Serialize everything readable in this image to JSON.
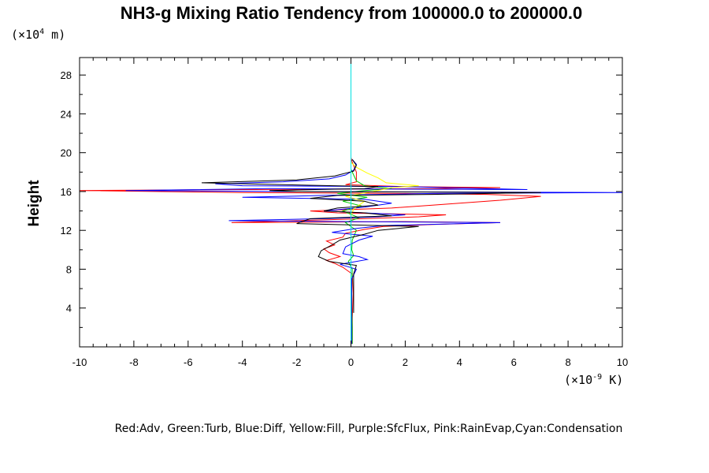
{
  "chart_data": {
    "type": "line",
    "title": "NH3-g Mixing Ratio Tendency from 100000.0 to 200000.0",
    "ylabel": "Height",
    "y_unit_prefix": "(×10",
    "y_unit_exp": "4",
    "y_unit_suffix": " m)",
    "x_unit_prefix": "(×10",
    "x_unit_exp": "-9",
    "x_unit_suffix": " K)",
    "xlim": [
      -10,
      10
    ],
    "ylim": [
      0,
      29.8
    ],
    "x_ticks": [
      -10,
      -8,
      -6,
      -4,
      -2,
      0,
      2,
      4,
      6,
      8,
      10
    ],
    "x_tick_labels": [
      "-10",
      "-8",
      "-6",
      "-4",
      "-2",
      "0",
      "2",
      "4",
      "6",
      "8",
      "10"
    ],
    "y_ticks": [
      4,
      8,
      12,
      16,
      20,
      24,
      28
    ],
    "y_tick_labels": [
      "4",
      "8",
      "12",
      "16",
      "20",
      "24",
      "28"
    ],
    "legend_text": "Red:Adv, Green:Turb, Blue:Diff, Yellow:Fill, Purple:SfcFlux, Pink:RainEvap,Cyan:Condensation",
    "grid": false,
    "series": [
      {
        "color": "#ff0000",
        "points": [
          [
            0.05,
            0.3
          ],
          [
            0.05,
            3
          ],
          [
            0.08,
            5.5
          ],
          [
            0.05,
            7.5
          ],
          [
            -0.3,
            8.2
          ],
          [
            -0.6,
            8.6
          ],
          [
            -0.9,
            8.9
          ],
          [
            -0.4,
            9.3
          ],
          [
            -0.8,
            9.7
          ],
          [
            -1.0,
            10.1
          ],
          [
            -0.6,
            10.5
          ],
          [
            -0.9,
            10.9
          ],
          [
            -0.3,
            11.3
          ],
          [
            -0.2,
            11.7
          ],
          [
            0.5,
            12.1
          ],
          [
            1.2,
            12.4
          ],
          [
            3.0,
            12.6
          ],
          [
            5.5,
            12.8
          ],
          [
            2.0,
            12.9
          ],
          [
            -4.4,
            12.8
          ],
          [
            -2.0,
            13.0
          ],
          [
            0.5,
            13.2
          ],
          [
            2.5,
            13.4
          ],
          [
            3.5,
            13.6
          ],
          [
            -0.5,
            13.8
          ],
          [
            -1.5,
            14.0
          ],
          [
            0.5,
            14.2
          ],
          [
            1.5,
            14.3
          ],
          [
            3.0,
            14.6
          ],
          [
            5.5,
            15.1
          ],
          [
            7.0,
            15.5
          ],
          [
            5.0,
            15.7
          ],
          [
            2.0,
            15.8
          ],
          [
            -4.0,
            15.9
          ],
          [
            -10.0,
            16.1
          ],
          [
            -4.0,
            16.2
          ],
          [
            3.0,
            16.3
          ],
          [
            5.5,
            16.4
          ],
          [
            2.0,
            16.5
          ],
          [
            -0.2,
            16.7
          ],
          [
            0.2,
            17.0
          ],
          [
            0.2,
            18.0
          ],
          [
            0.05,
            19.0
          ],
          [
            0,
            19.5
          ]
        ]
      },
      {
        "color": "#00cc00",
        "points": [
          [
            0.05,
            0.3
          ],
          [
            0.05,
            2
          ],
          [
            0.03,
            4
          ],
          [
            0.03,
            6
          ],
          [
            0.05,
            8
          ],
          [
            -0.1,
            8.8
          ],
          [
            0.1,
            9.4
          ],
          [
            0.03,
            10
          ],
          [
            0.05,
            11
          ],
          [
            0.2,
            12
          ],
          [
            -0.2,
            12.8
          ],
          [
            0.3,
            13.3
          ],
          [
            -0.3,
            14.0
          ],
          [
            0.4,
            14.5
          ],
          [
            -0.3,
            15.0
          ],
          [
            0.6,
            15.4
          ],
          [
            -0.5,
            15.8
          ],
          [
            0.5,
            16.1
          ],
          [
            1.5,
            16.3
          ],
          [
            0.5,
            16.6
          ],
          [
            0.2,
            17.1
          ],
          [
            0.1,
            17.7
          ],
          [
            0,
            18.3
          ],
          [
            0,
            19
          ]
        ]
      },
      {
        "color": "#0000ff",
        "points": [
          [
            0.02,
            0.3
          ],
          [
            0.02,
            4
          ],
          [
            0.03,
            7
          ],
          [
            0.2,
            8
          ],
          [
            -0.4,
            8.5
          ],
          [
            0.6,
            9.0
          ],
          [
            0.3,
            9.3
          ],
          [
            -0.3,
            9.6
          ],
          [
            -0.2,
            10.3
          ],
          [
            0.3,
            11
          ],
          [
            0.8,
            11.4
          ],
          [
            -0.7,
            11.8
          ],
          [
            0.2,
            12.2
          ],
          [
            1.2,
            12.5
          ],
          [
            5.5,
            12.8
          ],
          [
            0,
            12.9
          ],
          [
            -4.5,
            13.0
          ],
          [
            -1.0,
            13.2
          ],
          [
            1.0,
            13.4
          ],
          [
            2.0,
            13.6
          ],
          [
            -1.0,
            14.0
          ],
          [
            0.5,
            14.4
          ],
          [
            1.5,
            14.8
          ],
          [
            0.5,
            15.2
          ],
          [
            -4.0,
            15.4
          ],
          [
            -1.0,
            15.6
          ],
          [
            3.0,
            15.8
          ],
          [
            10.0,
            15.9
          ],
          [
            -2.0,
            16.0
          ],
          [
            -8.3,
            16.1
          ],
          [
            -3.0,
            16.3
          ],
          [
            6.5,
            16.2
          ],
          [
            2.0,
            16.5
          ],
          [
            -4.0,
            16.6
          ],
          [
            -5.0,
            16.8
          ],
          [
            -2.5,
            17.0
          ],
          [
            -0.8,
            17.3
          ],
          [
            -0.2,
            17.7
          ],
          [
            0.1,
            18.2
          ],
          [
            0.2,
            18.8
          ],
          [
            0.05,
            19.3
          ]
        ]
      },
      {
        "color": "#ffff00",
        "points": [
          [
            0,
            13.5
          ],
          [
            0.1,
            14.2
          ],
          [
            0.5,
            15.0
          ],
          [
            -0.2,
            15.5
          ],
          [
            0.8,
            16.0
          ],
          [
            1.5,
            16.4
          ],
          [
            2.5,
            16.6
          ],
          [
            1.3,
            16.9
          ],
          [
            1.0,
            17.4
          ],
          [
            0.6,
            17.9
          ],
          [
            0.2,
            18.5
          ],
          [
            0,
            19
          ]
        ]
      },
      {
        "color": "#000000",
        "points": [
          [
            0.1,
            3.5
          ],
          [
            0.1,
            7.5
          ],
          [
            0.2,
            8.4
          ],
          [
            -0.8,
            8.8
          ],
          [
            -1.2,
            9.3
          ],
          [
            -1.1,
            9.9
          ],
          [
            -0.7,
            10.5
          ],
          [
            -0.4,
            11.0
          ],
          [
            0.5,
            11.6
          ],
          [
            1.0,
            12.0
          ],
          [
            2.5,
            12.4
          ],
          [
            -2.0,
            12.7
          ],
          [
            -1.5,
            13.2
          ],
          [
            1.5,
            13.5
          ],
          [
            0.5,
            13.8
          ],
          [
            -1.0,
            14.0
          ],
          [
            -0.5,
            14.3
          ],
          [
            1.0,
            14.6
          ],
          [
            0.5,
            15.0
          ],
          [
            -1.5,
            15.3
          ],
          [
            -0.5,
            15.6
          ],
          [
            3.0,
            15.7
          ],
          [
            7.0,
            15.9
          ],
          [
            -2.0,
            16.0
          ],
          [
            -3.0,
            16.1
          ],
          [
            0.5,
            16.3
          ],
          [
            1.0,
            16.5
          ],
          [
            -2.5,
            16.7
          ],
          [
            -5.5,
            16.9
          ],
          [
            -2.0,
            17.2
          ],
          [
            -0.6,
            17.6
          ],
          [
            0.1,
            18.1
          ],
          [
            0.2,
            18.7
          ],
          [
            0.05,
            19.3
          ]
        ]
      },
      {
        "color": "#ff80c0",
        "points": [
          [
            0,
            0.3
          ],
          [
            0,
            19.5
          ]
        ]
      },
      {
        "color": "#00e0e0",
        "points": [
          [
            0,
            0
          ],
          [
            0,
            29.8
          ]
        ]
      }
    ]
  }
}
